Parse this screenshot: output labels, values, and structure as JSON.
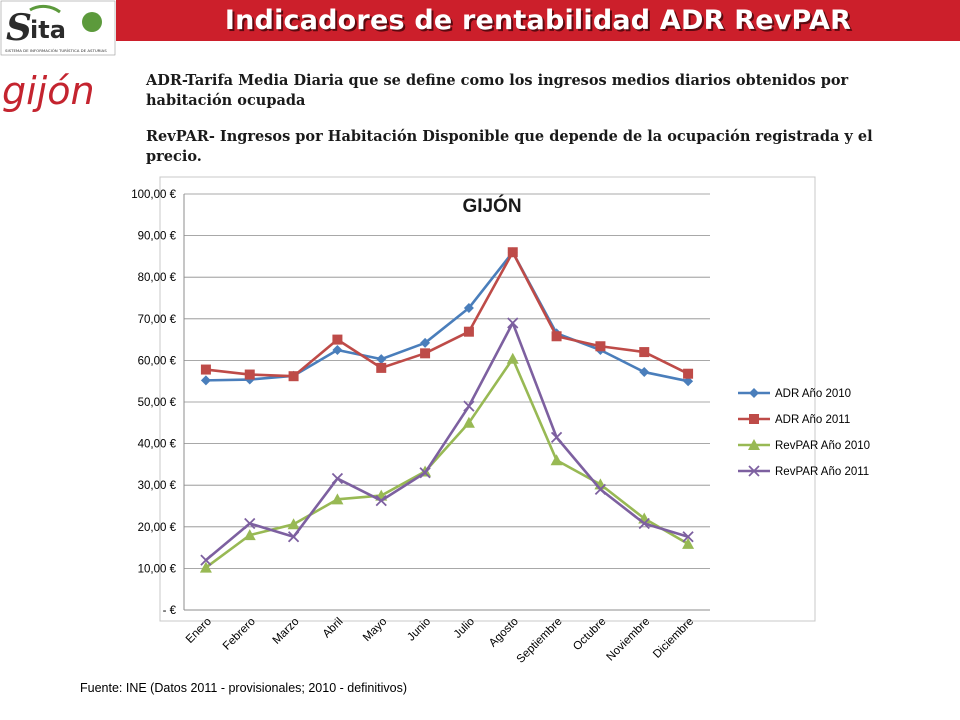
{
  "header": {
    "title": "Indicadores de rentabilidad ADR RevPAR",
    "logo_text": "SITA",
    "logo_subtitle": "SISTEMA DE INFORMACIÓN TURÍSTICA DE ASTURIAS",
    "city_logo_text": "gijón"
  },
  "description": {
    "adr": "ADR-Tarifa Media Diaria que se define como los ingresos medios diarios obtenidos por habitación ocupada",
    "revpar": "RevPAR- Ingresos por Habitación Disponible que depende de la ocupación registrada y el precio."
  },
  "source_note": "Fuente: INE (Datos 2011 - provisionales; 2010 - definitivos)",
  "colors": {
    "brand_red": "#cc1f2b",
    "logo_green": "#5c9a3c"
  },
  "chart_data": {
    "type": "line",
    "title": "GIJÓN",
    "xlabel": "",
    "ylabel": "",
    "ylim": [
      0,
      100
    ],
    "y_ticks": [
      "-   €",
      "10,00 €",
      "20,00 €",
      "30,00 €",
      "40,00 €",
      "50,00 €",
      "60,00 €",
      "70,00 €",
      "80,00 €",
      "90,00 €",
      "100,00 €"
    ],
    "categories": [
      "Enero",
      "Febrero",
      "Marzo",
      "Abril",
      "Mayo",
      "Junio",
      "Julio",
      "Agosto",
      "Septiembre",
      "Octubre",
      "Noviembre",
      "Diciembre"
    ],
    "grid": true,
    "legend_position": "right",
    "series": [
      {
        "name": "ADR Año 2010",
        "color": "#4a7ebb",
        "marker": "diamond",
        "values": [
          55.2,
          55.4,
          56.3,
          62.5,
          60.3,
          64.2,
          72.6,
          86.0,
          66.5,
          62.5,
          57.2,
          55.0
        ]
      },
      {
        "name": "ADR Año 2011",
        "color": "#be4b48",
        "marker": "square",
        "values": [
          57.8,
          56.6,
          56.2,
          65.0,
          58.2,
          61.7,
          66.9,
          86.0,
          65.8,
          63.4,
          62.0,
          56.8
        ]
      },
      {
        "name": "RevPAR Año 2010",
        "color": "#98b954",
        "marker": "triangle",
        "values": [
          10.2,
          18.0,
          20.6,
          26.6,
          27.5,
          33.3,
          45.0,
          60.4,
          36.0,
          30.2,
          22.0,
          15.9
        ]
      },
      {
        "name": "RevPAR Año 2011",
        "color": "#7d60a0",
        "marker": "x",
        "values": [
          12.0,
          20.8,
          17.6,
          31.6,
          26.3,
          33.0,
          49.0,
          69.0,
          41.5,
          29.0,
          20.8,
          17.6
        ]
      }
    ]
  }
}
